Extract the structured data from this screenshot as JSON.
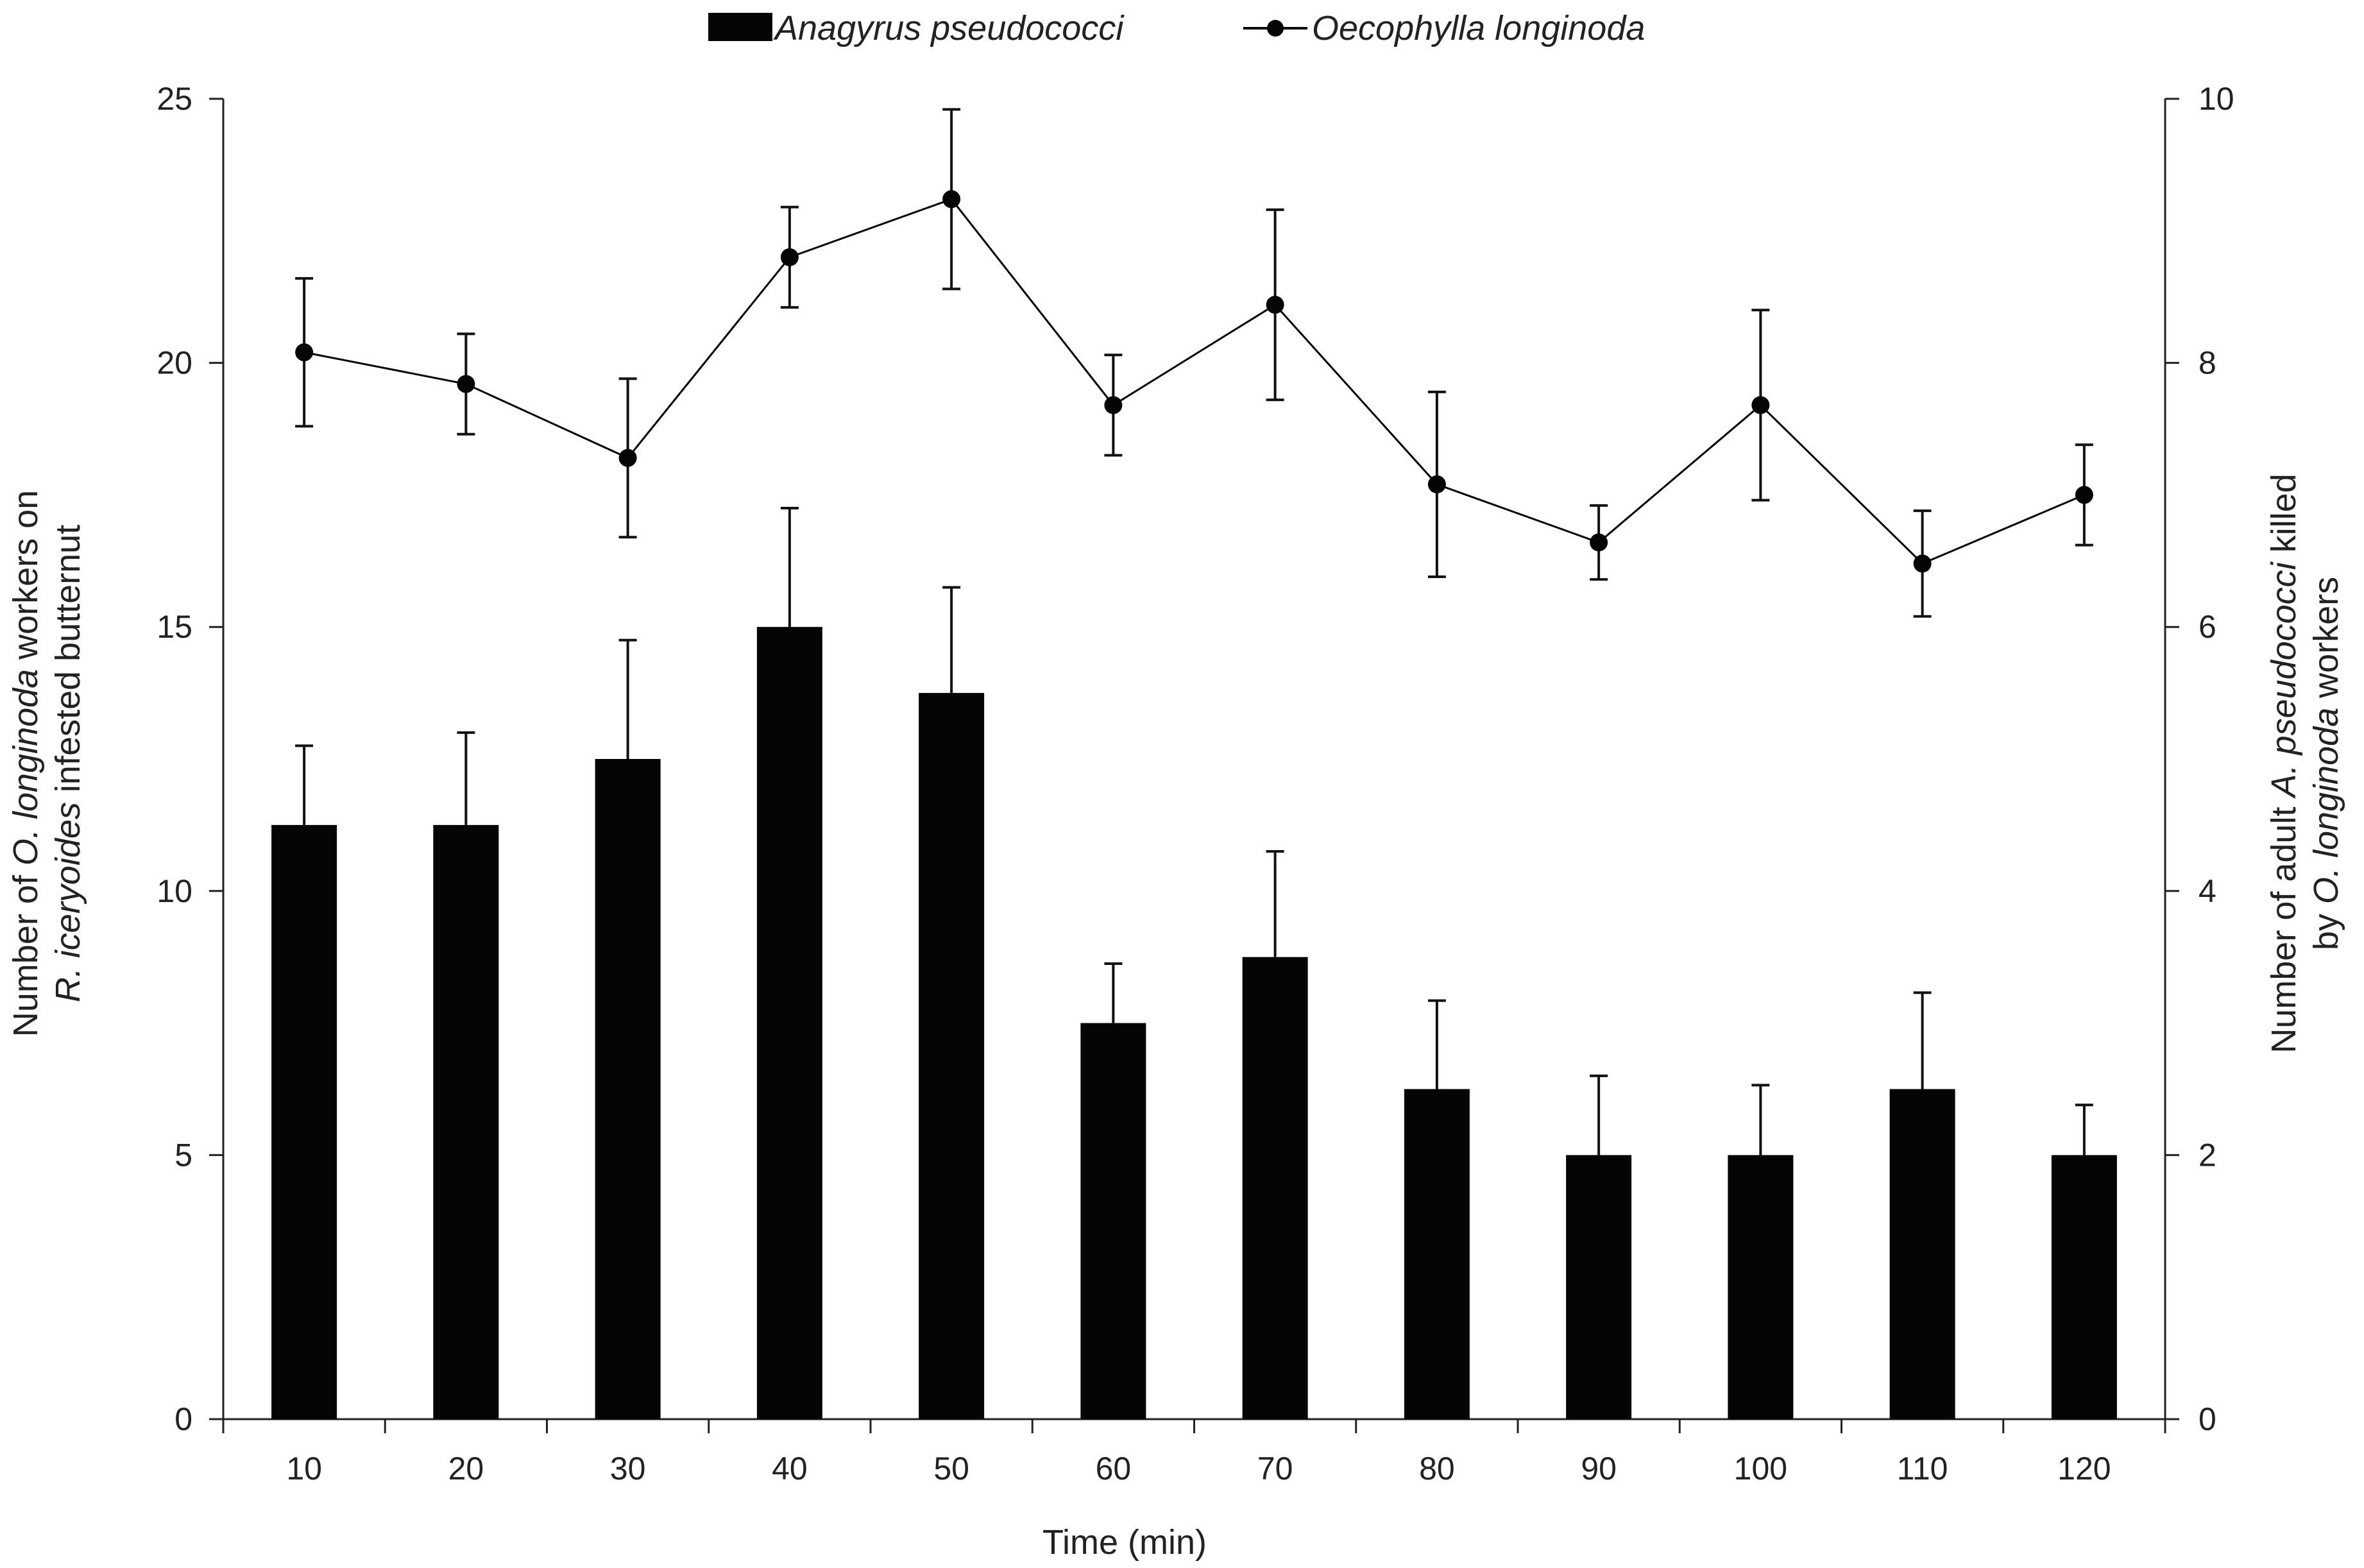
{
  "chart_data": {
    "type": "bar+line",
    "title": "",
    "xlabel": "Time (min)",
    "categories": [
      "10",
      "20",
      "30",
      "40",
      "50",
      "60",
      "70",
      "80",
      "90",
      "100",
      "110",
      "120"
    ],
    "ylabel_left": {
      "line1": {
        "pre": "Number of ",
        "em": "O. longinoda",
        "post": " workers on"
      },
      "line2": {
        "pre": "",
        "em": "R. iceryoides",
        "post": " infested butternut"
      }
    },
    "ylabel_right": {
      "line1": {
        "pre": "Number of adult ",
        "em": "A. pseudococci",
        "post": " killed"
      },
      "line2": {
        "pre": "by ",
        "em": "O. longinoda",
        "post": " workers"
      }
    },
    "ylim_left": [
      0,
      25
    ],
    "yticks_left": [
      "0",
      "5",
      "10",
      "15",
      "20",
      "25"
    ],
    "ylim_right": [
      0,
      10
    ],
    "yticks_right": [
      "0",
      "2",
      "4",
      "6",
      "8",
      "10"
    ],
    "series": [
      {
        "name": "Anagyrus pseudococci",
        "type": "bar",
        "axis": "right",
        "color": "#050505",
        "values": [
          4.5,
          4.5,
          5.0,
          6.0,
          5.5,
          3.0,
          3.5,
          2.5,
          2.0,
          2.0,
          2.5,
          2.0
        ],
        "errors": [
          0.6,
          0.7,
          0.9,
          0.9,
          0.8,
          0.45,
          0.8,
          0.67,
          0.6,
          0.53,
          0.73,
          0.38
        ]
      },
      {
        "name": "Oecophylla longinoda",
        "type": "line",
        "axis": "left",
        "color": "#050505",
        "values": [
          20.2,
          19.6,
          18.2,
          22.0,
          23.1,
          19.2,
          21.1,
          17.7,
          16.6,
          19.2,
          16.2,
          17.5
        ],
        "errors": [
          1.4,
          0.95,
          1.5,
          0.95,
          1.7,
          0.95,
          1.8,
          1.75,
          0.7,
          1.8,
          1.0,
          0.95
        ]
      }
    ],
    "legend": {
      "position": "top-center",
      "bar_label": "Anagyrus pseudococci",
      "line_label": "Oecophylla longinoda"
    },
    "grid": false
  }
}
